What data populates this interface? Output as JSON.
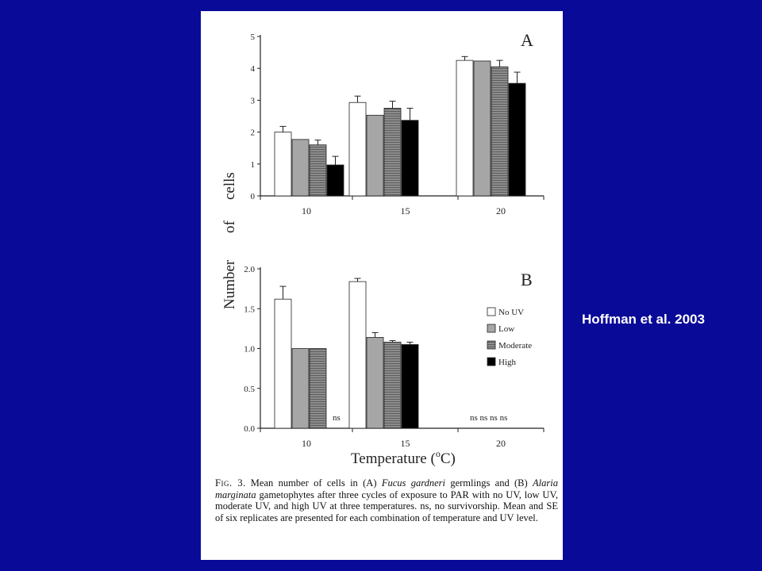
{
  "slide": {
    "citation": "Hoffman et al. 2003",
    "background": "#0a0a98"
  },
  "figure": {
    "ylabel_words": [
      "of",
      "cells",
      "Number"
    ],
    "xlabel_main": "Temperature (",
    "xlabel_sup": "o",
    "xlabel_end": "C)",
    "caption": {
      "label": "Fig. 3.",
      "pre": "Mean number of cells in (A) ",
      "species_a": "Fucus gardneri",
      "mid1": " germlings and (B) ",
      "species_b": "Alaria marginata",
      "post": " gametophytes after three cycles of exposure to PAR with no UV, low UV, moderate UV, and high UV at three temperatures. ns, no survivorship. Mean and SE of six replicates are presented for each combination of temperature and UV level."
    }
  },
  "series_styles": [
    {
      "name": "No UV",
      "fill": "#ffffff"
    },
    {
      "name": "Low",
      "fill": "#a6a6a6"
    },
    {
      "name": "Moderate",
      "fill": "#8c8c8c",
      "hatched": true
    },
    {
      "name": "High",
      "fill": "#000000"
    }
  ],
  "chart_data": [
    {
      "type": "bar",
      "panel_label": "A",
      "categories": [
        "10",
        "15",
        "20"
      ],
      "ylim": [
        0,
        5
      ],
      "yticks": [
        "0",
        "1",
        "2",
        "3",
        "4",
        "5"
      ],
      "series": [
        {
          "values": [
            2.0,
            2.93,
            4.25
          ],
          "errors": [
            0.18,
            0.2,
            0.12
          ]
        },
        {
          "values": [
            1.77,
            2.53,
            4.23
          ],
          "errors": [
            0,
            0,
            0
          ]
        },
        {
          "values": [
            1.6,
            2.75,
            4.05
          ],
          "errors": [
            0.15,
            0.22,
            0.2
          ]
        },
        {
          "values": [
            0.97,
            2.37,
            3.53
          ],
          "errors": [
            0.27,
            0.38,
            0.35
          ]
        }
      ]
    },
    {
      "type": "bar",
      "panel_label": "B",
      "categories": [
        "10",
        "15",
        "20"
      ],
      "ylim": [
        0,
        2
      ],
      "yticks": [
        "0.0",
        "0.5",
        "1.0",
        "1.5",
        "2.0"
      ],
      "legend": [
        "No UV",
        "Low",
        "Moderate",
        "High"
      ],
      "legend_position": "right",
      "series": [
        {
          "name": "No UV",
          "values": [
            1.62,
            1.84,
            null
          ],
          "errors": [
            0.16,
            0.04,
            null
          ]
        },
        {
          "name": "Low",
          "values": [
            1.0,
            1.14,
            null
          ],
          "errors": [
            0,
            0.06,
            null
          ]
        },
        {
          "name": "Moderate",
          "values": [
            1.0,
            1.08,
            null
          ],
          "errors": [
            0,
            0.02,
            null
          ]
        },
        {
          "name": "High",
          "values": [
            null,
            1.05,
            null
          ],
          "errors": [
            null,
            0.03,
            null
          ]
        }
      ],
      "annotations": {
        "ns_label": "ns",
        "ns_10": "ns",
        "ns_20": "ns ns ns ns"
      }
    }
  ]
}
